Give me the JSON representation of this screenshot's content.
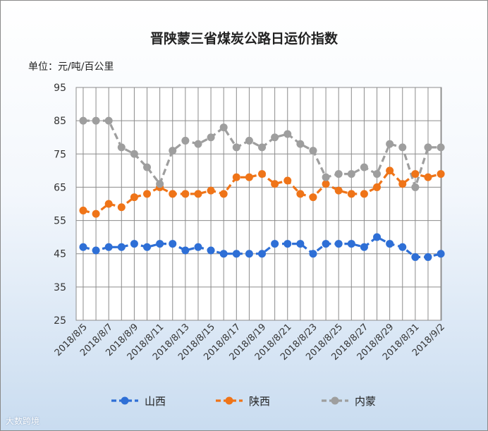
{
  "chart_data": {
    "type": "line",
    "title": "晋陕蒙三省煤炭公路日运价指数",
    "unit_label": "单位：元/吨/百公里",
    "ylim": [
      25,
      95
    ],
    "yticks": [
      25,
      35,
      45,
      55,
      65,
      75,
      85,
      95
    ],
    "grid": true,
    "legend_position": "bottom",
    "x": [
      "2018/8/5",
      "2018/8/6",
      "2018/8/7",
      "2018/8/8",
      "2018/8/9",
      "2018/8/10",
      "2018/8/11",
      "2018/8/12",
      "2018/8/13",
      "2018/8/14",
      "2018/8/15",
      "2018/8/16",
      "2018/8/17",
      "2018/8/18",
      "2018/8/19",
      "2018/8/20",
      "2018/8/21",
      "2018/8/22",
      "2018/8/23",
      "2018/8/24",
      "2018/8/25",
      "2018/8/26",
      "2018/8/27",
      "2018/8/28",
      "2018/8/29",
      "2018/8/30",
      "2018/8/31",
      "2018/9/1",
      "2018/9/2"
    ],
    "xtick_labels": [
      "2018/8/5",
      "",
      "2018/8/7",
      "",
      "2018/8/9",
      "",
      "2018/8/11",
      "",
      "2018/8/13",
      "",
      "2018/8/15",
      "",
      "2018/8/17",
      "",
      "2018/8/19",
      "",
      "2018/8/21",
      "",
      "2018/8/23",
      "",
      "2018/8/25",
      "",
      "2018/8/27",
      "",
      "2018/8/29",
      "",
      "2018/8/31",
      "",
      "2018/9/2"
    ],
    "series": [
      {
        "name": "山西",
        "color": "#2e6fd6",
        "values": [
          47,
          46,
          47,
          47,
          48,
          47,
          48,
          48,
          46,
          47,
          46,
          45,
          45,
          45,
          45,
          48,
          48,
          48,
          45,
          48,
          48,
          48,
          47,
          50,
          48,
          47,
          44,
          44,
          45
        ]
      },
      {
        "name": "陕西",
        "color": "#ef7418",
        "values": [
          58,
          57,
          60,
          59,
          62,
          63,
          65,
          63,
          63,
          63,
          64,
          63,
          68,
          68,
          69,
          66,
          67,
          63,
          62,
          66,
          64,
          63,
          63,
          65,
          70,
          66,
          69,
          68,
          69
        ]
      },
      {
        "name": "内蒙",
        "color": "#9e9e9e",
        "values": [
          85,
          85,
          85,
          77,
          75,
          71,
          66,
          76,
          79,
          78,
          80,
          83,
          77,
          79,
          77,
          80,
          81,
          78,
          76,
          68,
          69,
          69,
          71,
          69,
          78,
          77,
          65,
          77,
          77
        ]
      }
    ]
  },
  "watermark": "大数跨境"
}
